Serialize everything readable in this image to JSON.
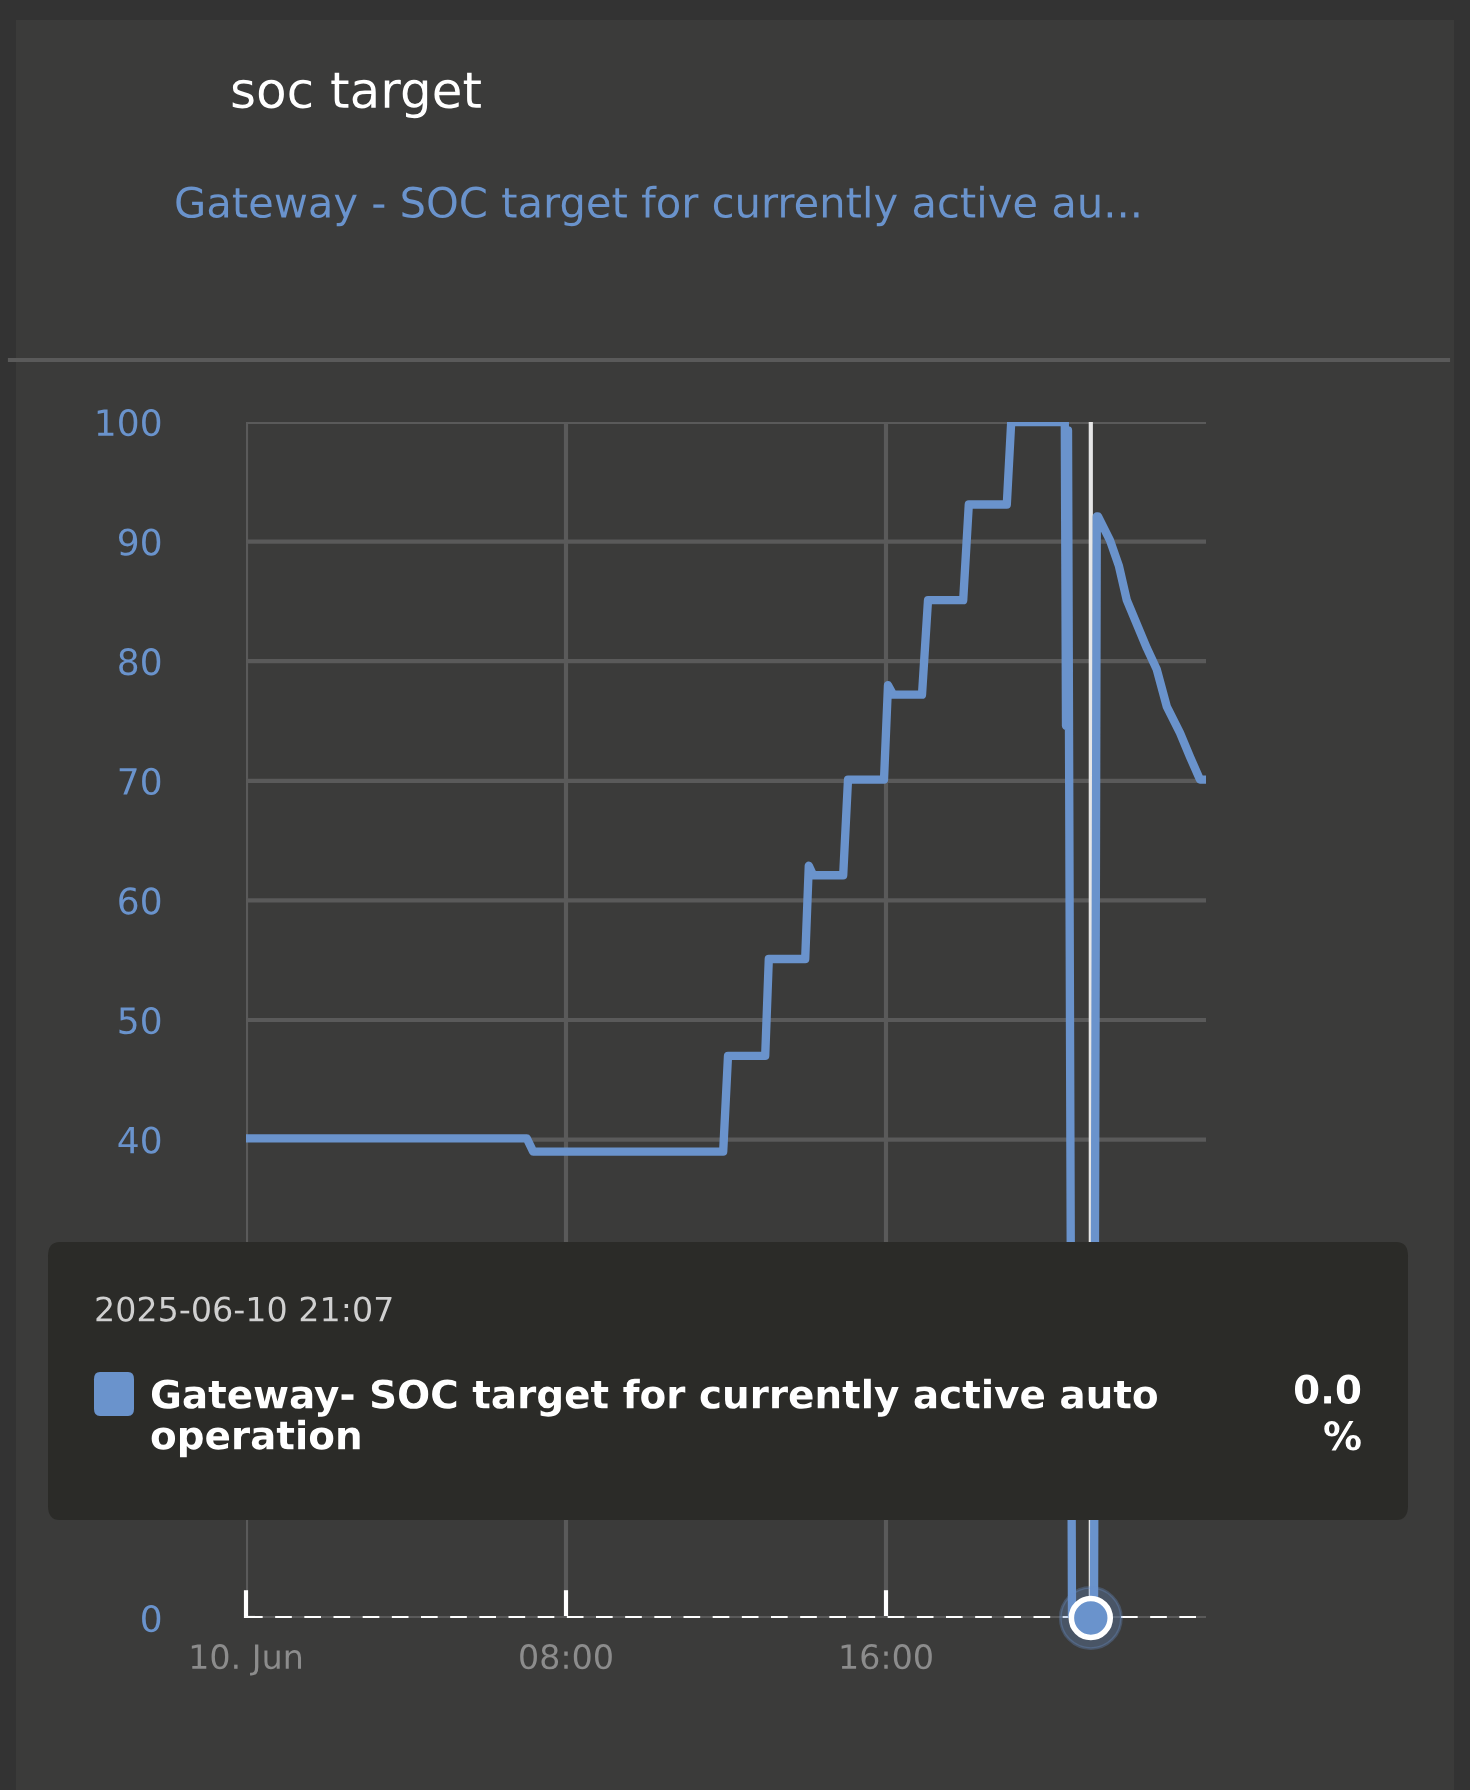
{
  "chart_data": {
    "type": "line",
    "title": "soc target",
    "subtitle": "Gateway - SOC target for currently active au...",
    "x": [
      0,
      7.02,
      7.18,
      11.93,
      12.05,
      12.98,
      13.07,
      13.98,
      14.07,
      14.18,
      14.93,
      15.05,
      15.95,
      16.05,
      16.18,
      16.9,
      17.05,
      17.93,
      18.07,
      19.02,
      19.13,
      20.47,
      20.5,
      20.55,
      20.65,
      21.12,
      21.2,
      21.27,
      21.3,
      21.6,
      21.82,
      22.02,
      22.27,
      22.52,
      22.77,
      23.02,
      23.35,
      23.6,
      23.85,
      24
    ],
    "series": [
      {
        "name": "Gateway- SOC target for currently active auto operation",
        "color": "#6a93cc",
        "values": [
          40.1,
          40.1,
          39.0,
          39.0,
          47.0,
          47.0,
          55.1,
          55.1,
          62.9,
          62.1,
          62.1,
          70.1,
          70.1,
          78.0,
          77.2,
          77.2,
          85.1,
          85.1,
          93.1,
          93.1,
          100,
          100,
          74.6,
          99.3,
          0,
          0,
          0,
          92.1,
          92.1,
          90.1,
          88.0,
          85.1,
          83.1,
          81.1,
          79.3,
          76.2,
          74.0,
          72.0,
          70.1,
          70.1
        ]
      }
    ],
    "xlim": [
      0,
      24
    ],
    "xticks": [
      {
        "value": 0,
        "label": "10. Jun"
      },
      {
        "value": 8,
        "label": "08:00"
      },
      {
        "value": 16,
        "label": "16:00"
      }
    ],
    "ylim": [
      0,
      100
    ],
    "yticks": [
      0,
      40,
      50,
      60,
      70,
      80,
      90,
      100
    ],
    "grid": true,
    "marker": "none",
    "line_style": "solid",
    "ref_lines": [
      {
        "axis": "y",
        "value": 0,
        "color": "#ffffff",
        "line_style": "dashed"
      },
      {
        "axis": "x",
        "value": 21.12,
        "color": "#e6e6e6",
        "line_style": "solid"
      }
    ],
    "annotations": [
      "2025-06-10 21:07",
      "0.0 %"
    ]
  }
}
